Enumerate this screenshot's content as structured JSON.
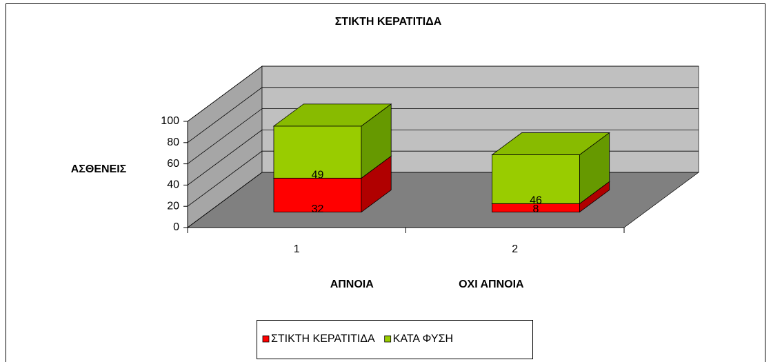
{
  "chart_data": {
    "type": "bar3d_stacked",
    "title": "ΣΤΙΚΤΗ ΚΕΡΑΤΙΤΙΔΑ",
    "y_label": "ΑΣΘΕΝΕΙΣ",
    "categories": [
      "1",
      "2"
    ],
    "category_groups": [
      "ΑΠΝΟΙΑ",
      "ΟΧΙ ΑΠΝΟΙΑ"
    ],
    "series": [
      {
        "name": "ΣΤΙΚΤΗ ΚΕΡΑΤΙΤΙΔΑ",
        "color": "#ff0000",
        "side_color": "#b00000",
        "top_color": "#e00000",
        "values": [
          32,
          8
        ]
      },
      {
        "name": "ΚΑΤΑ ΦΥΣΗ",
        "color": "#99cc00",
        "side_color": "#669900",
        "top_color": "#88bb00",
        "values": [
          49,
          46
        ]
      }
    ],
    "ylim": [
      0,
      100
    ],
    "yticks": [
      0,
      20,
      40,
      60,
      80,
      100
    ],
    "grid": true,
    "legend": "bottom"
  }
}
